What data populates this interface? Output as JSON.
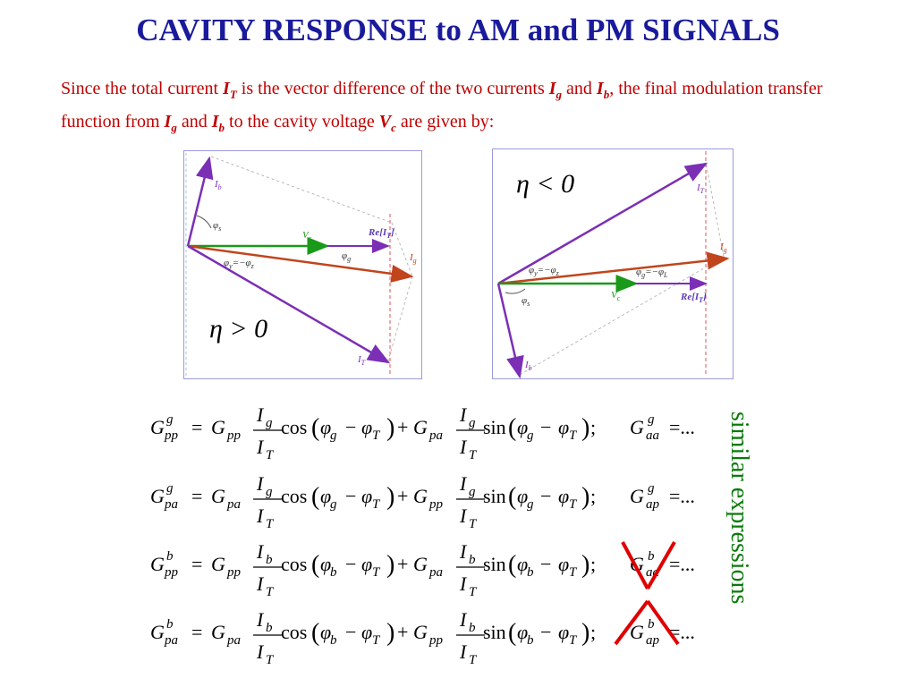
{
  "title": "CAVITY RESPONSE to AM and PM SIGNALS",
  "intro": {
    "t1": "Since the total current ",
    "t2": " is the vector difference of the two currents ",
    "t3": " and ",
    "t4": ", the final modulation transfer function from ",
    "t5": " and ",
    "t6": " to the cavity voltage ",
    "t7": " are given by:",
    "sym_I": "I",
    "sym_V": "V",
    "sub_T": "T",
    "sub_g": "g",
    "sub_b": "b",
    "sub_c": "c"
  },
  "diagram_left": {
    "eta_label": "η > 0",
    "labels": {
      "Ib": "I",
      "Ib_sub": "b",
      "phis": "φ",
      "phis_sub": "s",
      "Vc": "V",
      "Vc_sub": "c",
      "ReIT": "Re[I",
      "ReIT_sub": "T",
      "ReIT_close": "]",
      "phig": "φ",
      "phig_sub": "g",
      "phiy_z": "φ",
      "phiy_sub": "y",
      "eqmin": "=−φ",
      "phiz_sub": "z",
      "Ig": "I",
      "Ig_sub": "g",
      "IT": "I",
      "IT_sub": "T"
    }
  },
  "diagram_right": {
    "eta_label": "η < 0",
    "labels": {
      "IT": "I",
      "IT_sub": "T",
      "Ig": "I",
      "Ig_sub": "g",
      "phiy_z": "φ",
      "phiy_sub": "y",
      "eqmin": "=−φ",
      "phiz_sub": "z",
      "phig": "φ",
      "phig_sub": "g",
      "eqminL": "=−φ",
      "phiL_sub": "L",
      "phis": "φ",
      "phis_sub": "s",
      "Vc": "V",
      "Vc_sub": "c",
      "ReIT": "Re[I",
      "ReIT_sub": "T",
      "ReIT_close": "]",
      "Ib": "I",
      "Ib_sub": "b"
    }
  },
  "equations": [
    {
      "lhs_sup": "g",
      "lhs_sub": "pp",
      "G1_sub": "pp",
      "num": "g",
      "func1": "cos",
      "phi": "g",
      "G2_sub": "pa",
      "func2": "sin",
      "rhs_sup": "g",
      "rhs_sub": "aa",
      "crossed": false
    },
    {
      "lhs_sup": "g",
      "lhs_sub": "pa",
      "G1_sub": "pa",
      "num": "g",
      "func1": "cos",
      "phi": "g",
      "G2_sub": "pp",
      "func2": "sin",
      "rhs_sup": "g",
      "rhs_sub": "ap",
      "crossed": false
    },
    {
      "lhs_sup": "b",
      "lhs_sub": "pp",
      "G1_sub": "pp",
      "num": "b",
      "func1": "cos",
      "phi": "b",
      "G2_sub": "pa",
      "func2": "sin",
      "rhs_sup": "b",
      "rhs_sub": "aa",
      "crossed": true
    },
    {
      "lhs_sup": "b",
      "lhs_sub": "pa",
      "G1_sub": "pa",
      "num": "b",
      "func1": "cos",
      "phi": "b",
      "G2_sub": "pp",
      "func2": "sin",
      "rhs_sup": "b",
      "rhs_sub": "ap",
      "crossed": true
    }
  ],
  "eq_symbols": {
    "G": "G",
    "I": "I",
    "T": "T",
    "phi": "φ",
    "eq": "=",
    "minus": "−",
    "plus": "+",
    "semi": ";",
    "dots": "=...",
    "lp": "(",
    "rp": ")"
  },
  "side_note": "similar expressions",
  "colors": {
    "title": "#1a1a9c",
    "intro_text": "#c00000",
    "side_note": "#0a7a0a",
    "vector_Vc": "#1a9a1a",
    "vector_Ig": "#c0451c",
    "vector_IT_Ib": "#7b2fb5",
    "cross": "#e00000"
  }
}
